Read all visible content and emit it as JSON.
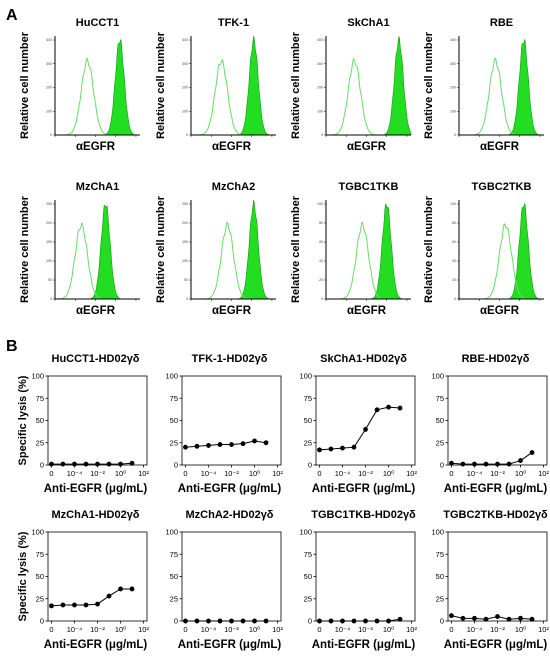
{
  "panel_a_label": "A",
  "panel_b_label": "B",
  "chart_data": [
    {
      "type": "histogram_overlay",
      "panel": "A",
      "ylabel": "Relative cell number",
      "xlabel": "αEGFR",
      "panels": [
        {
          "title": "HuCCT1",
          "ylim": [
            0,
            400
          ],
          "yticks": [
            "0",
            "100",
            "200",
            "300",
            "400"
          ],
          "iso_peak_log": 1.6,
          "egfr_peak_log": 3.2
        },
        {
          "title": "TFK-1",
          "ylim": [
            0,
            400
          ],
          "yticks": [
            "0",
            "100",
            "200",
            "300",
            "400"
          ],
          "iso_peak_log": 1.5,
          "egfr_peak_log": 3.1
        },
        {
          "title": "SkChA1",
          "ylim": [
            0,
            400
          ],
          "yticks": [
            "0",
            "100",
            "200",
            "300",
            "400"
          ],
          "iso_peak_log": 1.4,
          "egfr_peak_log": 3.6
        },
        {
          "title": "RBE",
          "ylim": [
            0,
            400
          ],
          "yticks": [
            "0",
            "100",
            "200",
            "300",
            "400"
          ],
          "iso_peak_log": 1.8,
          "egfr_peak_log": 3.2
        },
        {
          "title": "MzChA1",
          "ylim": [
            0,
            250
          ],
          "yticks": [
            "0",
            "50",
            "100",
            "150",
            "200",
            "250"
          ],
          "iso_peak_log": 1.3,
          "egfr_peak_log": 2.5
        },
        {
          "title": "MzChA2",
          "ylim": [
            0,
            250
          ],
          "yticks": [
            "0",
            "50",
            "100",
            "150",
            "200",
            "250"
          ],
          "iso_peak_log": 1.8,
          "egfr_peak_log": 3.1
        },
        {
          "title": "TGBC1TKB",
          "ylim": [
            0,
            100
          ],
          "yticks": [
            "0",
            "20",
            "40",
            "60",
            "80",
            "100"
          ],
          "iso_peak_log": 1.8,
          "egfr_peak_log": 3.0
        },
        {
          "title": "TGBC2TKB",
          "ylim": [
            0,
            100
          ],
          "yticks": [
            "0",
            "20",
            "40",
            "60",
            "80",
            "100"
          ],
          "iso_peak_log": 2.3,
          "egfr_peak_log": 3.2
        }
      ]
    },
    {
      "type": "line",
      "panel": "B",
      "ylabel": "Specific lysis (%)",
      "xlabel": "Anti-EGFR (μg/mL)",
      "ylim": [
        0,
        100
      ],
      "yticks": [
        0,
        25,
        50,
        75,
        100
      ],
      "xticks_log": [
        -6,
        -4,
        -2,
        0,
        2
      ],
      "xtick_labels": [
        "0",
        "10⁻⁴",
        "10⁻²",
        "10⁰",
        "10²"
      ],
      "x_log": [
        -6,
        -5,
        -4,
        -3,
        -2,
        -1,
        0,
        1
      ],
      "panels": [
        {
          "title": "HuCCT1-HD02γδ",
          "values": [
            1,
            1,
            1,
            1,
            1,
            1,
            1,
            2
          ]
        },
        {
          "title": "TFK-1-HD02γδ",
          "values": [
            20,
            21,
            22,
            23,
            23,
            24,
            27,
            25
          ]
        },
        {
          "title": "SkChA1-HD02γδ",
          "values": [
            17,
            18,
            19,
            20,
            40,
            62,
            65,
            64
          ]
        },
        {
          "title": "RBE-HD02γδ",
          "values": [
            2,
            1,
            1,
            1,
            1,
            1,
            5,
            14
          ],
          "x_labels_override": [
            "0",
            "10⁻⁴",
            "10⁻²",
            "10⁰",
            "10²"
          ]
        },
        {
          "title": "MzChA1-HD02γδ",
          "values": [
            17,
            18,
            18,
            18,
            19,
            28,
            36,
            36
          ]
        },
        {
          "title": "MzChA2-HD02γδ",
          "values": [
            0,
            0,
            0,
            0,
            0,
            0,
            0,
            0
          ]
        },
        {
          "title": "TGBC1TKB-HD02γδ",
          "values": [
            0,
            0,
            0,
            0,
            0,
            0,
            0,
            2
          ]
        },
        {
          "title": "TGBC2TKB-HD02γδ",
          "values": [
            6,
            3,
            3,
            2,
            5,
            2,
            3,
            2
          ]
        }
      ]
    }
  ],
  "colors": {
    "egfr_fill": "#22dd22",
    "isotype_line": "#66dd66",
    "axis": "#000000"
  }
}
